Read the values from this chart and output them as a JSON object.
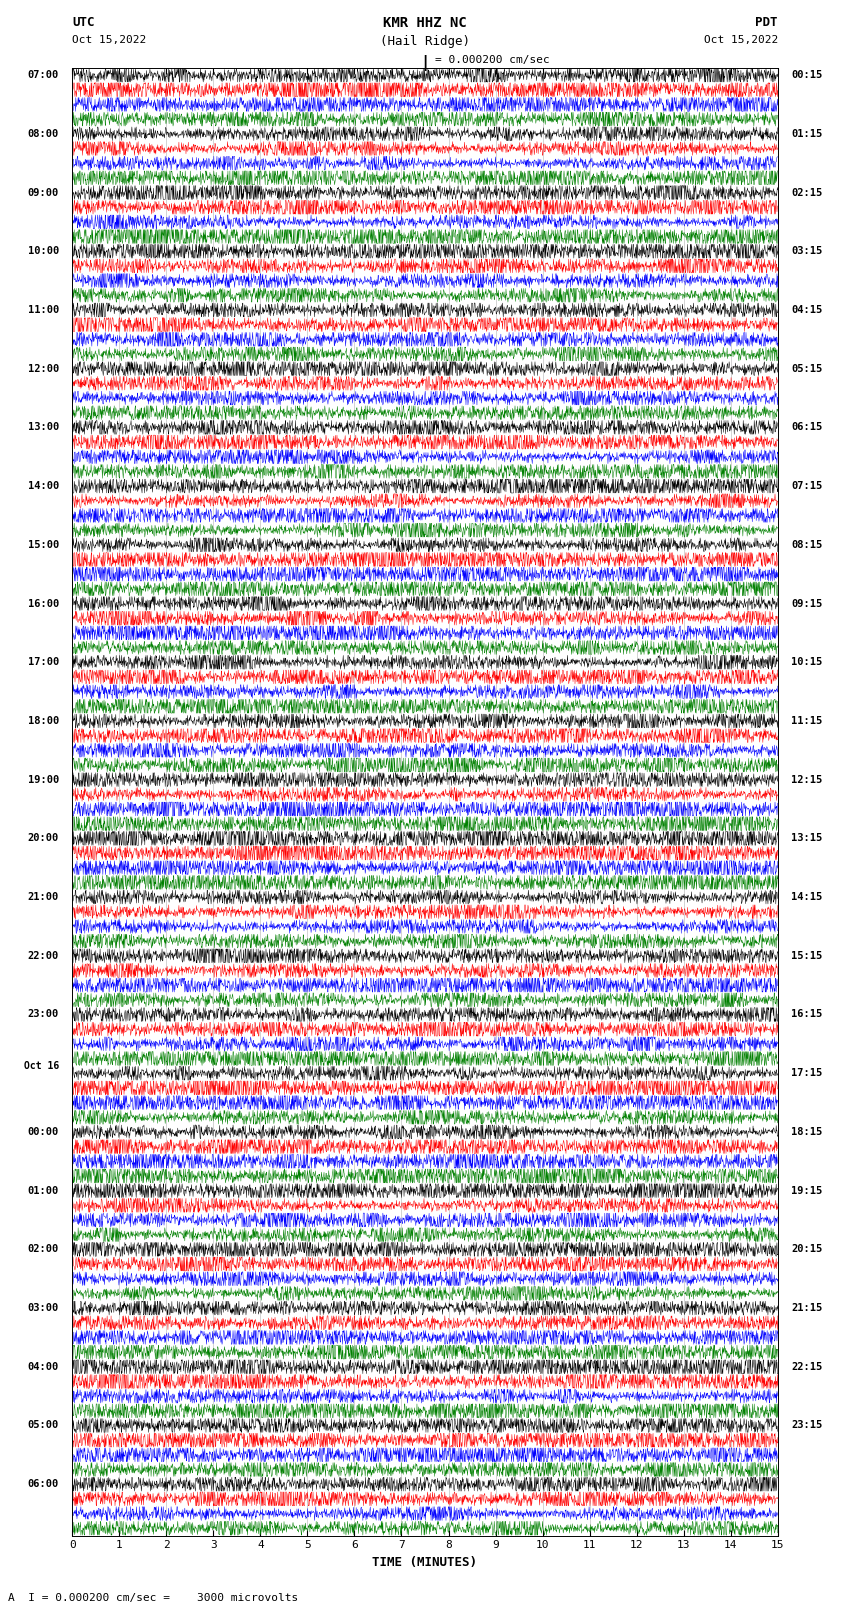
{
  "title_line1": "KMR HHZ NC",
  "title_line2": "(Hail Ridge)",
  "left_header": "UTC",
  "left_subheader": "Oct 15,2022",
  "right_header": "PDT",
  "right_subheader": "Oct 15,2022",
  "scale_label": "= 0.000200 cm/sec",
  "bottom_label": "A  I = 0.000200 cm/sec =    3000 microvolts",
  "xlabel": "TIME (MINUTES)",
  "xticks": [
    0,
    1,
    2,
    3,
    4,
    5,
    6,
    7,
    8,
    9,
    10,
    11,
    12,
    13,
    14,
    15
  ],
  "xmin": 0,
  "xmax": 15,
  "colors": [
    "black",
    "red",
    "blue",
    "green"
  ],
  "background": "white",
  "left_times": [
    "07:00",
    "08:00",
    "09:00",
    "10:00",
    "11:00",
    "12:00",
    "13:00",
    "14:00",
    "15:00",
    "16:00",
    "17:00",
    "18:00",
    "19:00",
    "20:00",
    "21:00",
    "22:00",
    "23:00",
    "Oct 16",
    "00:00",
    "01:00",
    "02:00",
    "03:00",
    "04:00",
    "05:00",
    "06:00"
  ],
  "right_times": [
    "00:15",
    "01:15",
    "02:15",
    "03:15",
    "04:15",
    "05:15",
    "06:15",
    "07:15",
    "08:15",
    "09:15",
    "10:15",
    "11:15",
    "12:15",
    "13:15",
    "14:15",
    "15:15",
    "16:15",
    "17:15",
    "18:15",
    "19:15",
    "20:15",
    "21:15",
    "22:15",
    "23:15"
  ],
  "num_groups": 25,
  "traces_per_group": 4,
  "seed": 42
}
